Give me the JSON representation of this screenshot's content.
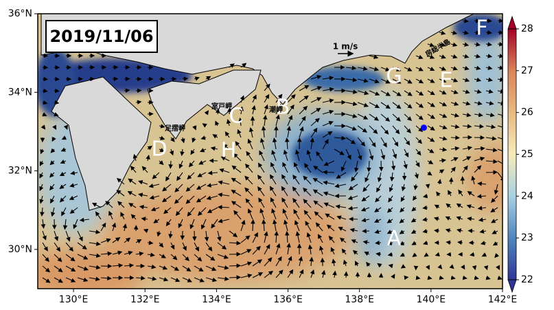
{
  "chart_data": {
    "type": "map",
    "title": "2019/11/06",
    "scale_label": "1 m/s",
    "xlim": [
      129,
      142
    ],
    "ylim": [
      29,
      36
    ],
    "xticks": [
      {
        "value": 130,
        "label": "130°E"
      },
      {
        "value": 132,
        "label": "132°E"
      },
      {
        "value": 134,
        "label": "134°E"
      },
      {
        "value": 136,
        "label": "136°E"
      },
      {
        "value": 138,
        "label": "138°E"
      },
      {
        "value": 140,
        "label": "140°E"
      },
      {
        "value": 142,
        "label": "142°E"
      }
    ],
    "yticks": [
      {
        "value": 30,
        "label": "30°N"
      },
      {
        "value": 32,
        "label": "32°N"
      },
      {
        "value": 34,
        "label": "34°N"
      },
      {
        "value": 36,
        "label": "36°N"
      }
    ],
    "colorbar": {
      "clim": [
        22,
        28
      ],
      "ticks": [
        22,
        23,
        24,
        25,
        26,
        27,
        28
      ],
      "colors": [
        "#313695",
        "#4f86bd",
        "#a9d0e2",
        "#f5ebba",
        "#e8b981",
        "#d9845a",
        "#a50026"
      ]
    },
    "point": {
      "lon": 139.8,
      "lat": 33.1,
      "color": "#0000ff"
    },
    "annotations": [
      "A",
      "B",
      "C",
      "D",
      "E",
      "F",
      "G",
      "H"
    ],
    "place_names": [
      "室戸岬",
      "足摺岬",
      "潮岬",
      "房総半島"
    ]
  }
}
